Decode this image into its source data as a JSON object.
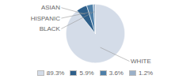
{
  "chart_data": {
    "type": "pie",
    "categories": [
      "WHITE",
      "ASIAN",
      "HISPANIC",
      "BLACK"
    ],
    "values": [
      89.3,
      5.9,
      3.6,
      1.2
    ],
    "value_labels": [
      "89.3%",
      "5.9%",
      "3.6%",
      "1.2%"
    ],
    "colors": [
      "#d4dce8",
      "#2e5f8a",
      "#4d7fa8",
      "#9ab0c8"
    ],
    "legend": "bottom"
  }
}
